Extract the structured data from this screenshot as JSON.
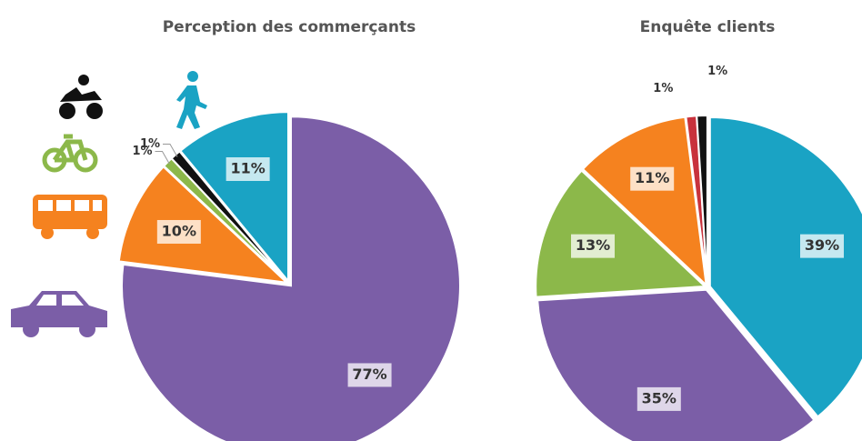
{
  "chart_data": [
    {
      "type": "pie",
      "title": "Perception des commerçants",
      "values": [
        77,
        10,
        1,
        1,
        11
      ],
      "value_labels": [
        "77%",
        "10%",
        "1%",
        "1%",
        "11%"
      ],
      "colors": [
        "#7b5ea7",
        "#f5821f",
        "#8cb84a",
        "#111111",
        "#1aa3c4"
      ]
    },
    {
      "type": "pie",
      "title": "Enquête clients",
      "values": [
        39,
        35,
        13,
        11,
        1,
        1
      ],
      "value_labels": [
        "39%",
        "35%",
        "13%",
        "11%",
        "1%",
        "1%"
      ],
      "colors": [
        "#1aa3c4",
        "#7b5ea7",
        "#8cb84a",
        "#f5821f",
        "#c8323c",
        "#111111"
      ]
    }
  ]
}
